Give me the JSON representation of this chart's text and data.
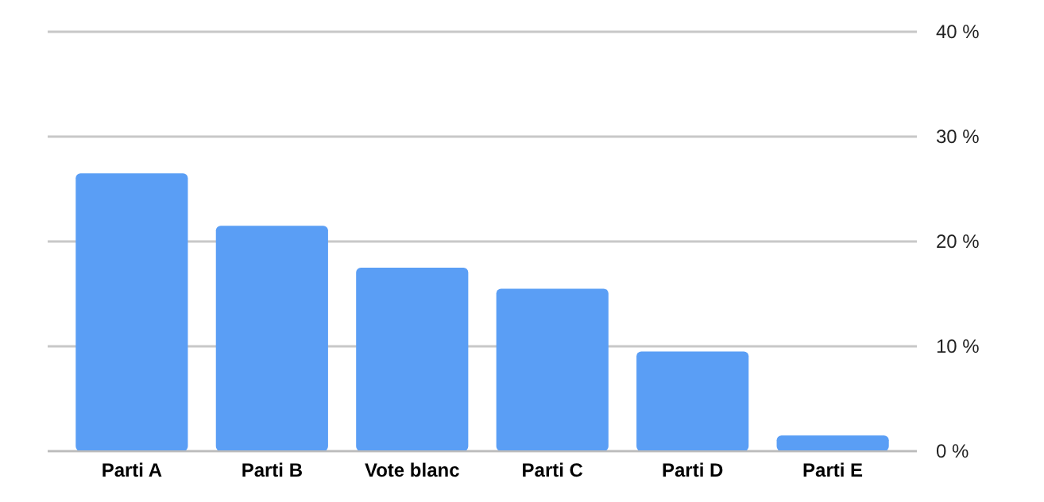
{
  "chart_data": {
    "type": "bar",
    "categories": [
      "Parti A",
      "Parti B",
      "Vote blanc",
      "Parti C",
      "Parti D",
      "Parti E"
    ],
    "values": [
      26.5,
      21.5,
      17.5,
      15.5,
      9.5,
      1.5
    ],
    "color": "#5a9ef5",
    "ylim": [
      0,
      40
    ],
    "yticks": [
      {
        "value": 0,
        "label": "0 %"
      },
      {
        "value": 10,
        "label": "10 %"
      },
      {
        "value": 20,
        "label": "20 %"
      },
      {
        "value": 30,
        "label": "30 %"
      },
      {
        "value": 40,
        "label": "40 %"
      }
    ],
    "grid": "y"
  }
}
